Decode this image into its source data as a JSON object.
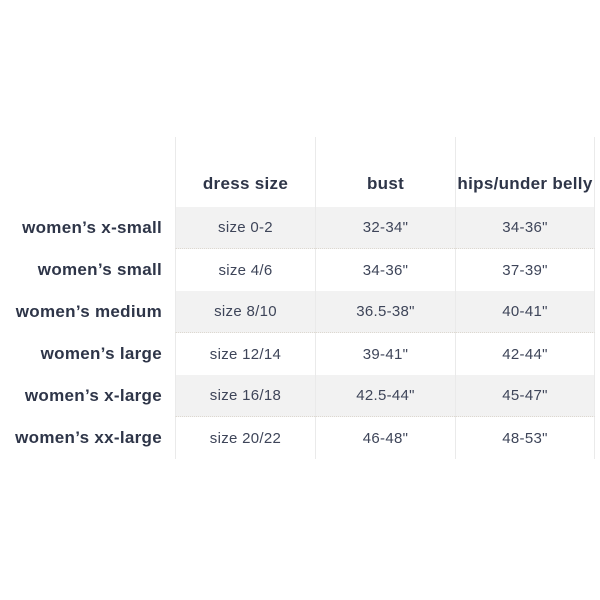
{
  "colors": {
    "text_dark_navy": "#2e3548",
    "text_value_navy": "#3e4559",
    "row_stripe": "#f2f2f2",
    "column_divider": "#eaeaea",
    "stripe_dotted_edge": "#ddd8d0"
  },
  "chart_data": {
    "type": "table",
    "title": "",
    "legend_position": "none",
    "grid": "vertical-dividers-and-striped-rows",
    "columns": {
      "row_label": "",
      "dress_size": "dress size",
      "bust": "bust",
      "hips": "hips/under belly"
    },
    "rows": [
      {
        "label": "women’s x-small",
        "dress_size": "size 0-2",
        "bust": "32-34\"",
        "hips": "34-36\""
      },
      {
        "label": "women’s small",
        "dress_size": "size 4/6",
        "bust": "34-36\"",
        "hips": "37-39\""
      },
      {
        "label": "women’s medium",
        "dress_size": "size 8/10",
        "bust": "36.5-38\"",
        "hips": "40-41\""
      },
      {
        "label": "women’s large",
        "dress_size": "size 12/14",
        "bust": "39-41\"",
        "hips": "42-44\""
      },
      {
        "label": "women’s x-large",
        "dress_size": "size 16/18",
        "bust": "42.5-44\"",
        "hips": "45-47\""
      },
      {
        "label": "women’s xx-large",
        "dress_size": "size 20/22",
        "bust": "46-48\"",
        "hips": "48-53\""
      }
    ]
  }
}
